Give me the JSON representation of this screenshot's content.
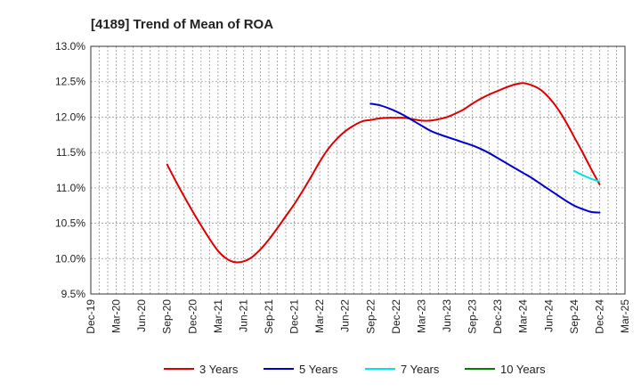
{
  "chart_data": {
    "type": "line",
    "title": "[4189]  Trend of Mean of ROA",
    "xlabel": "",
    "ylabel": "",
    "x_ticks": [
      "Dec-19",
      "Mar-20",
      "Jun-20",
      "Sep-20",
      "Dec-20",
      "Mar-21",
      "Jun-21",
      "Sep-21",
      "Dec-21",
      "Mar-22",
      "Jun-22",
      "Sep-22",
      "Dec-22",
      "Mar-23",
      "Jun-23",
      "Sep-23",
      "Dec-23",
      "Mar-24",
      "Jun-24",
      "Sep-24",
      "Dec-24",
      "Mar-25"
    ],
    "y_ticks": [
      "9.5%",
      "10.0%",
      "10.5%",
      "11.0%",
      "11.5%",
      "12.0%",
      "12.5%",
      "13.0%"
    ],
    "ylim": [
      9.5,
      13.0
    ],
    "y_unit": "%",
    "grid": true,
    "legend_position": "bottom",
    "series": [
      {
        "name": "3 Years",
        "color": "#dd0000",
        "points": [
          [
            "Sep-20",
            11.33
          ],
          [
            "Oct-20",
            11.1
          ],
          [
            "Nov-20",
            10.88
          ],
          [
            "Dec-20",
            10.67
          ],
          [
            "Jan-21",
            10.47
          ],
          [
            "Feb-21",
            10.28
          ],
          [
            "Mar-21",
            10.11
          ],
          [
            "Apr-21",
            10.0
          ],
          [
            "May-21",
            9.95
          ],
          [
            "Jun-21",
            9.96
          ],
          [
            "Jul-21",
            10.02
          ],
          [
            "Aug-21",
            10.13
          ],
          [
            "Sep-21",
            10.27
          ],
          [
            "Oct-21",
            10.43
          ],
          [
            "Nov-21",
            10.6
          ],
          [
            "Dec-21",
            10.77
          ],
          [
            "Jan-22",
            10.96
          ],
          [
            "Feb-22",
            11.16
          ],
          [
            "Mar-22",
            11.37
          ],
          [
            "Apr-22",
            11.55
          ],
          [
            "May-22",
            11.69
          ],
          [
            "Jun-22",
            11.8
          ],
          [
            "Jul-22",
            11.88
          ],
          [
            "Aug-22",
            11.94
          ],
          [
            "Sep-22",
            11.96
          ],
          [
            "Oct-22",
            11.98
          ],
          [
            "Nov-22",
            11.99
          ],
          [
            "Dec-22",
            11.99
          ],
          [
            "Jan-23",
            11.99
          ],
          [
            "Feb-23",
            11.97
          ],
          [
            "Mar-23",
            11.95
          ],
          [
            "Apr-23",
            11.95
          ],
          [
            "May-23",
            11.97
          ],
          [
            "Jun-23",
            12.0
          ],
          [
            "Jul-23",
            12.05
          ],
          [
            "Aug-23",
            12.11
          ],
          [
            "Sep-23",
            12.19
          ],
          [
            "Oct-23",
            12.26
          ],
          [
            "Nov-23",
            12.32
          ],
          [
            "Dec-23",
            12.37
          ],
          [
            "Jan-24",
            12.42
          ],
          [
            "Feb-24",
            12.46
          ],
          [
            "Mar-24",
            12.48
          ],
          [
            "Apr-24",
            12.45
          ],
          [
            "May-24",
            12.39
          ],
          [
            "Jun-24",
            12.28
          ],
          [
            "Jul-24",
            12.13
          ],
          [
            "Aug-24",
            11.94
          ],
          [
            "Sep-24",
            11.72
          ],
          [
            "Oct-24",
            11.5
          ],
          [
            "Nov-24",
            11.27
          ],
          [
            "Dec-24",
            11.05
          ]
        ]
      },
      {
        "name": "5 Years",
        "color": "#0000cc",
        "points": [
          [
            "Sep-22",
            12.19
          ],
          [
            "Oct-22",
            12.17
          ],
          [
            "Nov-22",
            12.13
          ],
          [
            "Dec-22",
            12.08
          ],
          [
            "Jan-23",
            12.02
          ],
          [
            "Feb-23",
            11.95
          ],
          [
            "Mar-23",
            11.88
          ],
          [
            "Apr-23",
            11.81
          ],
          [
            "May-23",
            11.76
          ],
          [
            "Jun-23",
            11.72
          ],
          [
            "Jul-23",
            11.68
          ],
          [
            "Aug-23",
            11.64
          ],
          [
            "Sep-23",
            11.6
          ],
          [
            "Oct-23",
            11.55
          ],
          [
            "Nov-23",
            11.49
          ],
          [
            "Dec-23",
            11.42
          ],
          [
            "Jan-24",
            11.35
          ],
          [
            "Feb-24",
            11.28
          ],
          [
            "Mar-24",
            11.21
          ],
          [
            "Apr-24",
            11.14
          ],
          [
            "May-24",
            11.06
          ],
          [
            "Jun-24",
            10.98
          ],
          [
            "Jul-24",
            10.9
          ],
          [
            "Aug-24",
            10.82
          ],
          [
            "Sep-24",
            10.75
          ],
          [
            "Oct-24",
            10.7
          ],
          [
            "Nov-24",
            10.66
          ],
          [
            "Dec-24",
            10.65
          ]
        ]
      },
      {
        "name": "7 Years",
        "color": "#00e5e5",
        "points": [
          [
            "Sep-24",
            11.24
          ],
          [
            "Oct-24",
            11.18
          ],
          [
            "Nov-24",
            11.13
          ],
          [
            "Dec-24",
            11.09
          ]
        ]
      },
      {
        "name": "10 Years",
        "color": "#008000",
        "points": []
      }
    ]
  }
}
